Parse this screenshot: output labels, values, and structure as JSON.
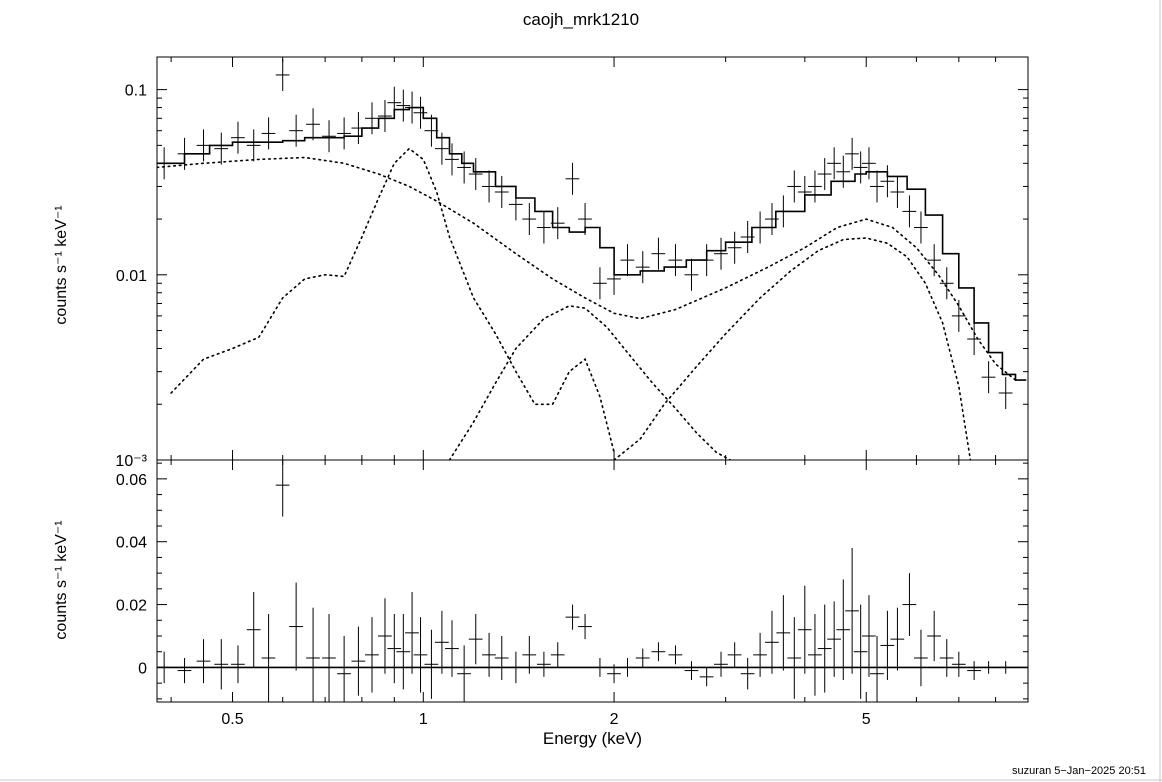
{
  "chart_data": [
    {
      "panel": "spectrum",
      "type": "line",
      "title": "caojh_mrk1210",
      "ylabel": "counts s⁻¹ keV⁻¹",
      "xlabel": "Energy (keV)",
      "xscale": "log",
      "yscale": "log",
      "xlim": [
        0.38,
        9.0
      ],
      "ylim": [
        0.001,
        0.15
      ],
      "y_tick_labels": [
        "10⁻³",
        "0.01",
        "0.1"
      ],
      "y_ticks": [
        0.001,
        0.01,
        0.1
      ],
      "data": {
        "x": [
          0.39,
          0.42,
          0.45,
          0.48,
          0.51,
          0.54,
          0.57,
          0.6,
          0.63,
          0.67,
          0.71,
          0.75,
          0.79,
          0.83,
          0.87,
          0.9,
          0.93,
          0.96,
          0.99,
          1.03,
          1.07,
          1.11,
          1.16,
          1.21,
          1.27,
          1.33,
          1.4,
          1.47,
          1.55,
          1.63,
          1.72,
          1.8,
          1.9,
          2.0,
          2.1,
          2.22,
          2.35,
          2.5,
          2.65,
          2.8,
          2.95,
          3.1,
          3.25,
          3.4,
          3.55,
          3.7,
          3.85,
          4.0,
          4.15,
          4.3,
          4.45,
          4.6,
          4.75,
          4.9,
          5.05,
          5.2,
          5.4,
          5.6,
          5.85,
          6.1,
          6.4,
          6.7,
          7.0,
          7.4,
          7.8,
          8.3
        ],
        "y": [
          0.04,
          0.045,
          0.05,
          0.048,
          0.055,
          0.05,
          0.058,
          0.12,
          0.06,
          0.065,
          0.056,
          0.058,
          0.062,
          0.07,
          0.072,
          0.085,
          0.082,
          0.08,
          0.075,
          0.06,
          0.048,
          0.042,
          0.038,
          0.035,
          0.03,
          0.028,
          0.024,
          0.02,
          0.018,
          0.019,
          0.033,
          0.02,
          0.009,
          0.0095,
          0.012,
          0.011,
          0.013,
          0.012,
          0.01,
          0.012,
          0.013,
          0.014,
          0.016,
          0.018,
          0.02,
          0.022,
          0.03,
          0.028,
          0.03,
          0.035,
          0.04,
          0.036,
          0.045,
          0.038,
          0.04,
          0.03,
          0.032,
          0.028,
          0.022,
          0.018,
          0.012,
          0.009,
          0.006,
          0.0045,
          0.0028,
          0.0023
        ],
        "yerr_rel": 0.22
      },
      "model_total": {
        "x": [
          0.38,
          0.42,
          0.46,
          0.5,
          0.55,
          0.6,
          0.65,
          0.7,
          0.75,
          0.8,
          0.85,
          0.9,
          0.95,
          1.0,
          1.05,
          1.1,
          1.15,
          1.2,
          1.3,
          1.4,
          1.5,
          1.6,
          1.7,
          1.8,
          1.9,
          2.0,
          2.2,
          2.4,
          2.6,
          2.8,
          3.0,
          3.3,
          3.6,
          4.0,
          4.4,
          4.8,
          5.0,
          5.4,
          5.8,
          6.2,
          6.6,
          7.0,
          7.4,
          7.8,
          8.2,
          8.6
        ],
        "y": [
          0.04,
          0.045,
          0.05,
          0.052,
          0.052,
          0.053,
          0.055,
          0.055,
          0.056,
          0.062,
          0.07,
          0.078,
          0.08,
          0.07,
          0.055,
          0.045,
          0.04,
          0.036,
          0.03,
          0.026,
          0.022,
          0.018,
          0.017,
          0.018,
          0.014,
          0.01,
          0.0105,
          0.011,
          0.012,
          0.0135,
          0.015,
          0.018,
          0.022,
          0.027,
          0.032,
          0.035,
          0.036,
          0.034,
          0.029,
          0.021,
          0.013,
          0.0085,
          0.0055,
          0.0038,
          0.0029,
          0.0027
        ]
      },
      "model_components": [
        {
          "x": [
            0.38,
            0.45,
            0.55,
            0.65,
            0.75,
            0.85,
            0.95,
            1.05,
            1.2,
            1.4,
            1.6,
            1.8,
            2.0,
            2.2,
            2.5,
            3.0,
            3.5,
            4.0,
            4.5,
            5.0,
            5.5,
            6.0,
            6.5,
            7.0,
            7.5,
            8.0,
            8.6
          ],
          "y": [
            0.038,
            0.04,
            0.042,
            0.043,
            0.04,
            0.035,
            0.03,
            0.025,
            0.019,
            0.013,
            0.0095,
            0.0075,
            0.0062,
            0.0058,
            0.0065,
            0.0085,
            0.011,
            0.014,
            0.018,
            0.02,
            0.018,
            0.014,
            0.01,
            0.0068,
            0.0045,
            0.0033,
            0.0027
          ]
        },
        {
          "x": [
            0.4,
            0.45,
            0.5,
            0.55,
            0.6,
            0.65,
            0.7,
            0.75,
            0.8,
            0.85,
            0.9,
            0.95,
            1.0,
            1.05,
            1.1,
            1.2,
            1.3,
            1.4,
            1.5,
            1.6,
            1.7,
            1.8,
            1.9,
            2.0
          ],
          "y": [
            0.0023,
            0.0035,
            0.004,
            0.0046,
            0.0075,
            0.0095,
            0.01,
            0.0098,
            0.016,
            0.026,
            0.04,
            0.048,
            0.042,
            0.028,
            0.016,
            0.0075,
            0.0048,
            0.003,
            0.002,
            0.002,
            0.003,
            0.0035,
            0.0022,
            0.0011
          ]
        },
        {
          "x": [
            1.1,
            1.2,
            1.3,
            1.4,
            1.55,
            1.7,
            1.8,
            1.95,
            2.1,
            2.3,
            2.5,
            2.7,
            2.9,
            3.05
          ],
          "y": [
            0.001,
            0.0016,
            0.0026,
            0.004,
            0.0058,
            0.0068,
            0.0066,
            0.0052,
            0.0038,
            0.0026,
            0.0019,
            0.0014,
            0.0011,
            0.001
          ]
        },
        {
          "x": [
            2.0,
            2.2,
            2.4,
            2.7,
            3.0,
            3.4,
            3.8,
            4.2,
            4.6,
            5.0,
            5.4,
            5.8,
            6.2,
            6.6,
            7.0,
            7.3
          ],
          "y": [
            0.001,
            0.0013,
            0.002,
            0.0032,
            0.0048,
            0.0075,
            0.0105,
            0.0135,
            0.0155,
            0.0158,
            0.0148,
            0.0125,
            0.009,
            0.0055,
            0.0025,
            0.001
          ]
        }
      ]
    },
    {
      "panel": "residuals",
      "type": "scatter",
      "ylabel": "counts s⁻¹ keV⁻¹",
      "xlabel": "Energy (keV)",
      "xscale": "log",
      "xlim": [
        0.38,
        9.0
      ],
      "ylim": [
        -0.011,
        0.066
      ],
      "y_tick_labels": [
        "0",
        "0.02",
        "0.04",
        "0.06"
      ],
      "y_ticks": [
        0,
        0.02,
        0.04,
        0.06
      ],
      "x_tick_labels": [
        "0.5",
        "1",
        "2",
        "5"
      ],
      "x_ticks": [
        0.5,
        1,
        2,
        5
      ],
      "data": {
        "x": [
          0.39,
          0.42,
          0.45,
          0.48,
          0.51,
          0.54,
          0.57,
          0.6,
          0.63,
          0.67,
          0.71,
          0.75,
          0.79,
          0.83,
          0.87,
          0.9,
          0.93,
          0.96,
          0.99,
          1.03,
          1.07,
          1.11,
          1.16,
          1.21,
          1.27,
          1.33,
          1.4,
          1.47,
          1.55,
          1.63,
          1.72,
          1.8,
          1.9,
          2.0,
          2.1,
          2.22,
          2.35,
          2.5,
          2.65,
          2.8,
          2.95,
          3.1,
          3.25,
          3.4,
          3.55,
          3.7,
          3.85,
          4.0,
          4.15,
          4.3,
          4.45,
          4.6,
          4.75,
          4.9,
          5.05,
          5.2,
          5.4,
          5.6,
          5.85,
          6.1,
          6.4,
          6.7,
          7.0,
          7.4,
          7.8,
          8.3
        ],
        "y": [
          0.0,
          -0.001,
          0.002,
          0.001,
          0.001,
          0.012,
          0.003,
          0.058,
          0.013,
          0.003,
          0.003,
          -0.002,
          0.002,
          0.004,
          0.01,
          0.006,
          0.005,
          0.011,
          0.004,
          0.001,
          0.008,
          0.006,
          -0.002,
          0.009,
          0.004,
          0.003,
          0.0,
          0.004,
          0.001,
          0.004,
          0.016,
          0.013,
          0.0,
          -0.002,
          0.0,
          0.003,
          0.005,
          0.004,
          -0.001,
          -0.003,
          0.001,
          0.004,
          -0.002,
          0.004,
          0.008,
          0.011,
          0.003,
          0.012,
          0.004,
          0.006,
          0.009,
          0.012,
          0.018,
          0.005,
          0.01,
          -0.002,
          0.007,
          0.009,
          0.02,
          0.003,
          0.01,
          0.003,
          0.001,
          -0.001,
          0.0,
          0.0
        ],
        "yerr": [
          0.005,
          0.004,
          0.007,
          0.008,
          0.006,
          0.012,
          0.014,
          0.01,
          0.014,
          0.016,
          0.014,
          0.012,
          0.011,
          0.012,
          0.012,
          0.011,
          0.012,
          0.013,
          0.012,
          0.011,
          0.01,
          0.009,
          0.009,
          0.008,
          0.007,
          0.007,
          0.005,
          0.006,
          0.004,
          0.004,
          0.004,
          0.004,
          0.003,
          0.003,
          0.003,
          0.003,
          0.003,
          0.003,
          0.003,
          0.003,
          0.004,
          0.004,
          0.005,
          0.007,
          0.01,
          0.012,
          0.013,
          0.014,
          0.013,
          0.014,
          0.012,
          0.016,
          0.02,
          0.015,
          0.013,
          0.012,
          0.011,
          0.01,
          0.01,
          0.009,
          0.008,
          0.006,
          0.004,
          0.003,
          0.002,
          0.002
        ]
      }
    }
  ],
  "title": "caojh_mrk1210",
  "xlabel": "Energy (keV)",
  "ylabel_top": "counts s⁻¹ keV⁻¹",
  "ylabel_bottom": "counts s⁻¹ keV⁻¹",
  "footer": "suzuran  5−Jan−2025 20:51"
}
